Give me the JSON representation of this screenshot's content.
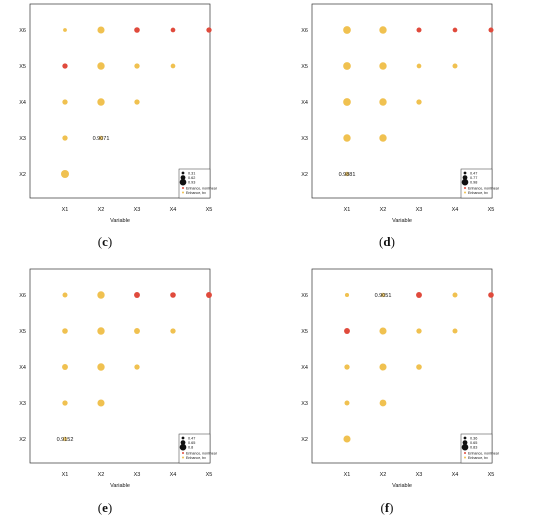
{
  "chart_data": [
    {
      "type": "scatter",
      "caption_letter": "c",
      "xlabel": "Variable",
      "x_categories": [
        "X1",
        "X2",
        "X3",
        "X4",
        "X5"
      ],
      "y_categories": [
        "X2",
        "X3",
        "X4",
        "X5",
        "X6"
      ],
      "points": [
        {
          "x": "X1",
          "y": "X2",
          "interaction": "linear",
          "strength": 0.9
        },
        {
          "x": "X1",
          "y": "X3",
          "interaction": "linear",
          "strength": 0.45
        },
        {
          "x": "X1",
          "y": "X4",
          "interaction": "linear",
          "strength": 0.45
        },
        {
          "x": "X1",
          "y": "X5",
          "interaction": "nonlinear",
          "strength": 0.45
        },
        {
          "x": "X1",
          "y": "X6",
          "interaction": "linear",
          "strength": 0.2
        },
        {
          "x": "X2",
          "y": "X3",
          "interaction": "linear",
          "strength": 0.3,
          "label": "0.9071"
        },
        {
          "x": "X2",
          "y": "X4",
          "interaction": "linear",
          "strength": 0.8
        },
        {
          "x": "X2",
          "y": "X5",
          "interaction": "linear",
          "strength": 0.8
        },
        {
          "x": "X2",
          "y": "X6",
          "interaction": "linear",
          "strength": 0.75
        },
        {
          "x": "X3",
          "y": "X4",
          "interaction": "linear",
          "strength": 0.45
        },
        {
          "x": "X3",
          "y": "X5",
          "interaction": "linear",
          "strength": 0.45
        },
        {
          "x": "X3",
          "y": "X6",
          "interaction": "nonlinear",
          "strength": 0.5
        },
        {
          "x": "X4",
          "y": "X5",
          "interaction": "linear",
          "strength": 0.35
        },
        {
          "x": "X4",
          "y": "X6",
          "interaction": "nonlinear",
          "strength": 0.35
        },
        {
          "x": "X5",
          "y": "X6",
          "interaction": "nonlinear",
          "strength": 0.45
        }
      ],
      "legend": {
        "sizes": [
          "0.31",
          "0.62",
          "0.93"
        ],
        "entries": [
          "Enhance, nonlinear",
          "Enhance, bv"
        ]
      }
    },
    {
      "type": "scatter",
      "caption_letter": "d",
      "xlabel": "Variable",
      "x_categories": [
        "X1",
        "X2",
        "X3",
        "X4",
        "X5"
      ],
      "y_categories": [
        "X2",
        "X3",
        "X4",
        "X5",
        "X6"
      ],
      "points": [
        {
          "x": "X1",
          "y": "X2",
          "interaction": "linear",
          "strength": 0.3,
          "label": "0.9881"
        },
        {
          "x": "X1",
          "y": "X3",
          "interaction": "linear",
          "strength": 0.8
        },
        {
          "x": "X1",
          "y": "X4",
          "interaction": "linear",
          "strength": 0.85
        },
        {
          "x": "X1",
          "y": "X5",
          "interaction": "linear",
          "strength": 0.85
        },
        {
          "x": "X1",
          "y": "X6",
          "interaction": "linear",
          "strength": 0.85
        },
        {
          "x": "X2",
          "y": "X3",
          "interaction": "linear",
          "strength": 0.8
        },
        {
          "x": "X2",
          "y": "X4",
          "interaction": "linear",
          "strength": 0.8
        },
        {
          "x": "X2",
          "y": "X5",
          "interaction": "linear",
          "strength": 0.8
        },
        {
          "x": "X2",
          "y": "X6",
          "interaction": "linear",
          "strength": 0.8
        },
        {
          "x": "X3",
          "y": "X4",
          "interaction": "linear",
          "strength": 0.45
        },
        {
          "x": "X3",
          "y": "X5",
          "interaction": "linear",
          "strength": 0.35
        },
        {
          "x": "X3",
          "y": "X6",
          "interaction": "nonlinear",
          "strength": 0.4
        },
        {
          "x": "X4",
          "y": "X5",
          "interaction": "linear",
          "strength": 0.4
        },
        {
          "x": "X4",
          "y": "X6",
          "interaction": "nonlinear",
          "strength": 0.35
        },
        {
          "x": "X5",
          "y": "X6",
          "interaction": "nonlinear",
          "strength": 0.4
        }
      ],
      "legend": {
        "sizes": [
          "0.47",
          "0.77",
          "0.98"
        ],
        "entries": [
          "Enhance, nonlinear",
          "Enhance, bv"
        ]
      }
    },
    {
      "type": "scatter",
      "caption_letter": "e",
      "xlabel": "Variable",
      "x_categories": [
        "X1",
        "X2",
        "X3",
        "X4",
        "X5"
      ],
      "y_categories": [
        "X2",
        "X3",
        "X4",
        "X5",
        "X6"
      ],
      "points": [
        {
          "x": "X1",
          "y": "X2",
          "interaction": "linear",
          "strength": 0.3,
          "label": "0.9152"
        },
        {
          "x": "X1",
          "y": "X3",
          "interaction": "linear",
          "strength": 0.45
        },
        {
          "x": "X1",
          "y": "X4",
          "interaction": "linear",
          "strength": 0.55
        },
        {
          "x": "X1",
          "y": "X5",
          "interaction": "linear",
          "strength": 0.5
        },
        {
          "x": "X1",
          "y": "X6",
          "interaction": "linear",
          "strength": 0.4
        },
        {
          "x": "X2",
          "y": "X3",
          "interaction": "linear",
          "strength": 0.75
        },
        {
          "x": "X2",
          "y": "X4",
          "interaction": "linear",
          "strength": 0.8
        },
        {
          "x": "X2",
          "y": "X5",
          "interaction": "linear",
          "strength": 0.8
        },
        {
          "x": "X2",
          "y": "X6",
          "interaction": "linear",
          "strength": 0.8
        },
        {
          "x": "X3",
          "y": "X4",
          "interaction": "linear",
          "strength": 0.45
        },
        {
          "x": "X3",
          "y": "X5",
          "interaction": "linear",
          "strength": 0.55
        },
        {
          "x": "X3",
          "y": "X6",
          "interaction": "nonlinear",
          "strength": 0.55
        },
        {
          "x": "X4",
          "y": "X5",
          "interaction": "linear",
          "strength": 0.45
        },
        {
          "x": "X4",
          "y": "X6",
          "interaction": "nonlinear",
          "strength": 0.5
        },
        {
          "x": "X5",
          "y": "X6",
          "interaction": "nonlinear",
          "strength": 0.55
        }
      ],
      "legend": {
        "sizes": [
          "0.47",
          "0.65",
          "0.8"
        ],
        "entries": [
          "Enhance, nonlinear",
          "Enhance, bv"
        ]
      }
    },
    {
      "type": "scatter",
      "caption_letter": "f",
      "xlabel": "Variable",
      "x_categories": [
        "X1",
        "X2",
        "X3",
        "X4",
        "X5"
      ],
      "y_categories": [
        "X2",
        "X3",
        "X4",
        "X5",
        "X6"
      ],
      "points": [
        {
          "x": "X1",
          "y": "X2",
          "interaction": "linear",
          "strength": 0.75
        },
        {
          "x": "X1",
          "y": "X3",
          "interaction": "linear",
          "strength": 0.4
        },
        {
          "x": "X1",
          "y": "X4",
          "interaction": "linear",
          "strength": 0.45
        },
        {
          "x": "X1",
          "y": "X5",
          "interaction": "nonlinear",
          "strength": 0.55
        },
        {
          "x": "X1",
          "y": "X6",
          "interaction": "linear",
          "strength": 0.25
        },
        {
          "x": "X2",
          "y": "X3",
          "interaction": "linear",
          "strength": 0.7
        },
        {
          "x": "X2",
          "y": "X4",
          "interaction": "linear",
          "strength": 0.75
        },
        {
          "x": "X2",
          "y": "X5",
          "interaction": "linear",
          "strength": 0.75
        },
        {
          "x": "X2",
          "y": "X6",
          "interaction": "linear",
          "strength": 0.3,
          "label": "0.9051"
        },
        {
          "x": "X3",
          "y": "X4",
          "interaction": "linear",
          "strength": 0.5
        },
        {
          "x": "X3",
          "y": "X5",
          "interaction": "linear",
          "strength": 0.45
        },
        {
          "x": "X3",
          "y": "X6",
          "interaction": "nonlinear",
          "strength": 0.55
        },
        {
          "x": "X4",
          "y": "X5",
          "interaction": "linear",
          "strength": 0.4
        },
        {
          "x": "X4",
          "y": "X6",
          "interaction": "linear",
          "strength": 0.4
        },
        {
          "x": "X5",
          "y": "X6",
          "interaction": "nonlinear",
          "strength": 0.5
        }
      ],
      "legend": {
        "sizes": [
          "0.36",
          "0.65",
          "0.83"
        ],
        "entries": [
          "Enhance, nonlinear",
          "Enhance, bv"
        ]
      }
    }
  ],
  "colors": {
    "linear": "#f0c150",
    "nonlinear": "#e04a3c",
    "label_dot": "#f5d27a"
  }
}
